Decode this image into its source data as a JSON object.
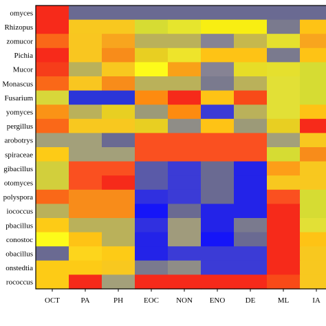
{
  "chart_data": {
    "type": "heatmap",
    "title": "",
    "xlabel": "",
    "ylabel": "",
    "columns": [
      "OCT",
      "PA",
      "PH",
      "EOC",
      "NON",
      "ENO",
      "DE",
      "ML",
      "IA"
    ],
    "rows": [
      "omyces",
      "Rhizopus",
      "zomucor",
      "Pichia",
      "Mucor",
      "Monascus",
      "Fusarium",
      "yomyces",
      "pergillus",
      "arobotrys",
      "spiraceae",
      "gibacillus",
      "otomyces",
      "polyspora",
      "iococcus",
      "pbacillus",
      "conostoc",
      "obacillus",
      "onstedtia",
      "rococcus"
    ],
    "cells": [
      [
        "#f62a1a",
        "#6a6a92",
        "#6a6a92",
        "#6a6a92",
        "#6a6a92",
        "#6a6a92",
        "#6a6a92",
        "#6a6a92",
        "#6a6a92"
      ],
      [
        "#f72a1a",
        "#f8c81f",
        "#f8c81f",
        "#d6dc33",
        "#e6e52d",
        "#f8ee12",
        "#f8ee12",
        "#7a7a8e",
        "#fec315"
      ],
      [
        "#fa6818",
        "#f9c620",
        "#f8a51e",
        "#bab15a",
        "#bab15a",
        "#868394",
        "#c6b84d",
        "#e5e02e",
        "#f8a51e"
      ],
      [
        "#f72a1a",
        "#f9c620",
        "#f88c1a",
        "#e8cf22",
        "#eee42b",
        "#fec315",
        "#fec315",
        "#7a7a8e",
        "#fec315"
      ],
      [
        "#f63d1a",
        "#bab15a",
        "#f8c81f",
        "#fdfb1a",
        "#f9a118",
        "#868394",
        "#e7dd27",
        "#e5e02e",
        "#d6dc33"
      ],
      [
        "#fa6818",
        "#f9c620",
        "#f88c1a",
        "#bab15a",
        "#bab15a",
        "#7a7a8e",
        "#bab15a",
        "#e2e036",
        "#d6dc33"
      ],
      [
        "#d8d73a",
        "#2b35d8",
        "#2b35d8",
        "#fd8b10",
        "#f62a1a",
        "#fec315",
        "#f84a18",
        "#e2e036",
        "#d6dc33"
      ],
      [
        "#fa9316",
        "#bab15a",
        "#e8cf22",
        "#9c9a78",
        "#fd8b10",
        "#3b3bd6",
        "#bab15a",
        "#e2e036",
        "#fec315"
      ],
      [
        "#fa6818",
        "#f8c81f",
        "#f8c81f",
        "#e8cf22",
        "#8f8d87",
        "#fec315",
        "#9c9a78",
        "#e8cf22",
        "#f72a1a"
      ],
      [
        "#a3a07a",
        "#a3a07a",
        "#6a6a92",
        "#fa5020",
        "#fa5020",
        "#fa5020",
        "#fa5020",
        "#a3a07a",
        "#f8c81f"
      ],
      [
        "#fdcb16",
        "#a3a07a",
        "#a3a07a",
        "#fa5020",
        "#fa5020",
        "#fa5020",
        "#fa5020",
        "#d6dc33",
        "#f88c1a"
      ],
      [
        "#d2cf3c",
        "#fa5020",
        "#fa5020",
        "#5a5aa8",
        "#3b3bd6",
        "#6a6a92",
        "#2323e8",
        "#fd9e18",
        "#f8c81f"
      ],
      [
        "#d2cf3c",
        "#fa5020",
        "#f62a1a",
        "#5a5aa8",
        "#3b3bd6",
        "#6a6a92",
        "#2323e8",
        "#f8c81f",
        "#f8c81f"
      ],
      [
        "#fa6818",
        "#f88c1a",
        "#f88c1a",
        "#3030e0",
        "#3b3bd6",
        "#6a6a92",
        "#2323e8",
        "#fa5020",
        "#d6dc33"
      ],
      [
        "#bab15a",
        "#f88c1a",
        "#f88c1a",
        "#1515f8",
        "#6a6a92",
        "#2323e8",
        "#2323e8",
        "#f62a1a",
        "#d6dc33"
      ],
      [
        "#fdcb16",
        "#bab15a",
        "#bab15a",
        "#3030e0",
        "#a09b7c",
        "#2323e8",
        "#7a7a8e",
        "#f62a1a",
        "#e2e036"
      ],
      [
        "#fdfb1a",
        "#fec315",
        "#bab15a",
        "#2323e8",
        "#a09b7c",
        "#1515f8",
        "#6a6a92",
        "#f62a1a",
        "#fec315"
      ],
      [
        "#6a6a92",
        "#fdd51c",
        "#fdcb16",
        "#2323e8",
        "#3b3bd6",
        "#3b3bd6",
        "#3b3bd6",
        "#f62a1a",
        "#f8c81f"
      ],
      [
        "#fdcb16",
        "#fdcb16",
        "#f8c81f",
        "#7a7a8e",
        "#8f8d87",
        "#3b3bd6",
        "#3b3bd6",
        "#f62a1a",
        "#f8c81f"
      ],
      [
        "#fdcb16",
        "#f62a1a",
        "#a3a07a",
        "#f62a1a",
        "#f62a1a",
        "#f62a1a",
        "#f62a1a",
        "#f84a18",
        "#f8c81f"
      ]
    ]
  }
}
